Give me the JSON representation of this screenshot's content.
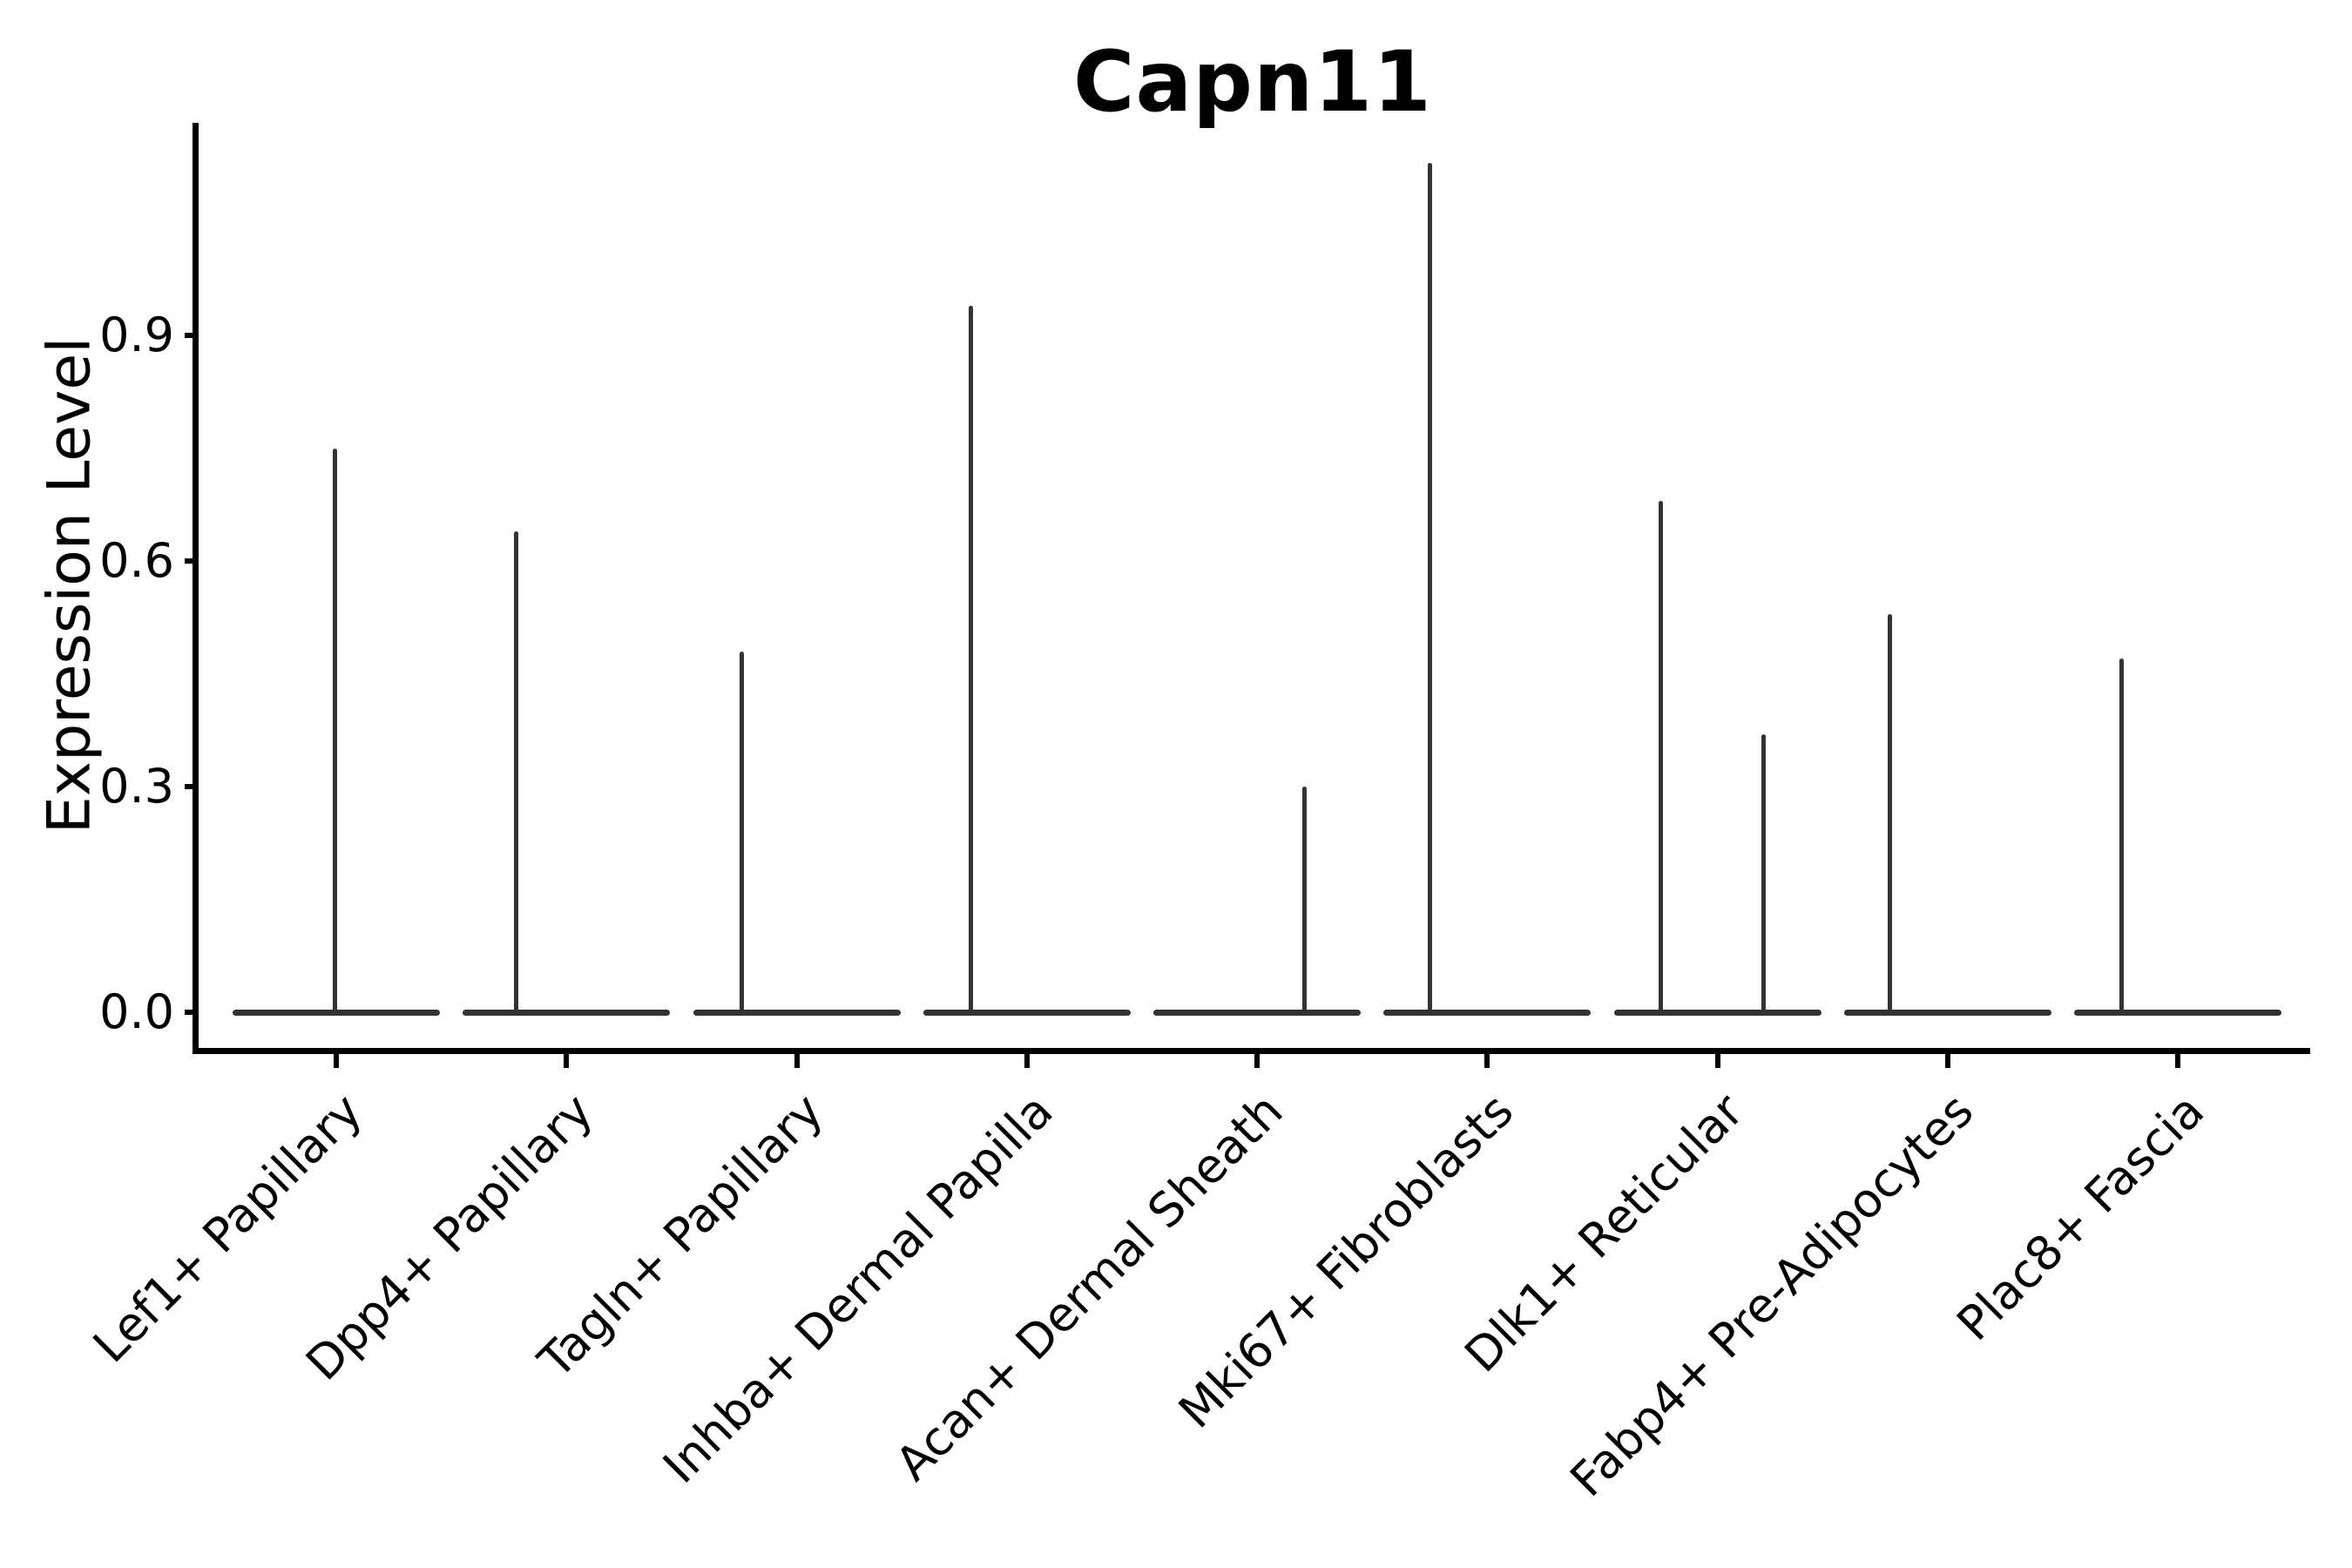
{
  "title": "Capn11",
  "y_axis": {
    "label": "Expression Level",
    "ticks": [
      {
        "label": "0.0",
        "value": 0.0
      },
      {
        "label": "0.3",
        "value": 0.3
      },
      {
        "label": "0.6",
        "value": 0.6
      },
      {
        "label": "0.9",
        "value": 0.9
      }
    ]
  },
  "colors": {
    "violin_stroke": "#333333",
    "axis": "#000000",
    "text": "#000000",
    "background": "#ffffff"
  },
  "chart_data": {
    "type": "violin",
    "title": "Capn11",
    "xlabel": "",
    "ylabel": "Expression Level",
    "yticks": [
      0.0,
      0.3,
      0.6,
      0.9
    ],
    "ylim": [
      -0.05,
      1.19
    ],
    "grid": false,
    "legend": null,
    "baseline_value": 0.0,
    "categories": [
      "Lef1+ Papillary",
      "Dpp4+ Papillary",
      "Tagln+ Papillary",
      "Inhba+ Dermal Papilla",
      "Acan+ Dermal Sheath",
      "Mki67+ Fibroblasts",
      "Dlk1+ Reticular",
      "Fabp4+ Pre-Adipocytes",
      "Plac8+ Fascia"
    ],
    "violins": [
      {
        "category": "Lef1+ Papillary",
        "max_expression": 0.75,
        "peaks": [
          {
            "dx": -2,
            "value": 0.75
          }
        ]
      },
      {
        "category": "Dpp4+ Papillary",
        "max_expression": 0.64,
        "peaks": [
          {
            "dx": -58,
            "value": 0.64
          }
        ]
      },
      {
        "category": "Tagln+ Papillary",
        "max_expression": 0.48,
        "peaks": [
          {
            "dx": -63,
            "value": 0.48
          }
        ]
      },
      {
        "category": "Inhba+ Dermal Papilla",
        "max_expression": 0.94,
        "peaks": [
          {
            "dx": -64,
            "value": 0.94
          }
        ]
      },
      {
        "category": "Acan+ Dermal Sheath",
        "max_expression": 0.3,
        "peaks": [
          {
            "dx": 54,
            "value": 0.3
          }
        ]
      },
      {
        "category": "Mki67+ Fibroblasts",
        "max_expression": 1.13,
        "peaks": [
          {
            "dx": -66,
            "value": 1.13
          }
        ]
      },
      {
        "category": "Dlk1+ Reticular",
        "max_expression": 0.68,
        "peaks": [
          {
            "dx": -65,
            "value": 0.68
          },
          {
            "dx": 53,
            "value": 0.37
          }
        ]
      },
      {
        "category": "Fabp4+ Pre-Adipocytes",
        "max_expression": 0.53,
        "peaks": [
          {
            "dx": -66,
            "value": 0.53
          }
        ]
      },
      {
        "category": "Plac8+ Fascia",
        "max_expression": 0.47,
        "peaks": [
          {
            "dx": -65,
            "value": 0.47
          }
        ]
      }
    ]
  }
}
